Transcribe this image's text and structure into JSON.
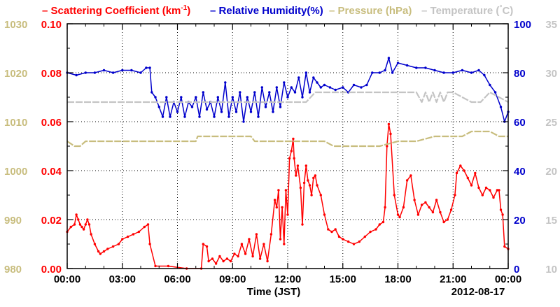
{
  "chart_data": {
    "type": "line",
    "xlabel": "Time (JST)",
    "date_label": "2012-08-17",
    "x_ticks": [
      "00:00",
      "03:00",
      "06:00",
      "09:00",
      "12:00",
      "15:00",
      "18:00",
      "21:00",
      "00:00"
    ],
    "xlim": [
      0,
      24
    ],
    "grid": true,
    "legend_placement": "top",
    "legend": [
      {
        "text": "Scattering Coefficient (km",
        "sup": "-1",
        "tail": ")",
        "color": "#ff0000"
      },
      {
        "text": "Relative Humidity(%)",
        "sup": "",
        "tail": "",
        "color": "#0000cc"
      },
      {
        "text": "Pressure (hPa)",
        "sup": "",
        "tail": "",
        "color": "#c8bd7e"
      },
      {
        "text": "Temperature (",
        "sup": "°",
        "tail": "C)",
        "color": "#c4c4c4"
      }
    ],
    "axes": {
      "pressure": {
        "ylim": [
          980,
          1030
        ],
        "ticks": [
          "980",
          "990",
          "1000",
          "1010",
          "1020",
          "1030"
        ],
        "color": "#c8bd7e",
        "side": "left-outer"
      },
      "scattering": {
        "ylim": [
          0,
          0.1
        ],
        "ticks": [
          "0.00",
          "0.02",
          "0.04",
          "0.06",
          "0.08",
          "0.10"
        ],
        "color": "#ff0000",
        "side": "left-inner"
      },
      "humidity": {
        "ylim": [
          0,
          100
        ],
        "ticks": [
          "0",
          "20",
          "40",
          "60",
          "80",
          "100"
        ],
        "color": "#0000cc",
        "side": "right-inner"
      },
      "temperature": {
        "ylim": [
          10,
          35
        ],
        "ticks": [
          "10",
          "15",
          "20",
          "25",
          "30",
          "35"
        ],
        "color": "#c4c4c4",
        "side": "right-outer"
      }
    },
    "series": [
      {
        "name": "Scattering Coefficient (km-1)",
        "axis": "scattering",
        "color": "#ff0000",
        "x": [
          0,
          0.2,
          0.4,
          0.5,
          0.6,
          0.7,
          0.8,
          0.9,
          1.0,
          1.1,
          1.2,
          1.3,
          1.5,
          1.7,
          1.8,
          2.0,
          2.2,
          2.5,
          2.8,
          3.0,
          3.3,
          3.6,
          3.9,
          4.2,
          4.4,
          4.5,
          4.8,
          5.5,
          6.5,
          7.3,
          7.4,
          7.6,
          7.7,
          7.9,
          8.1,
          8.3,
          8.5,
          8.7,
          8.9,
          9.1,
          9.3,
          9.5,
          9.7,
          9.9,
          10.1,
          10.3,
          10.5,
          10.7,
          10.9,
          11.1,
          11.3,
          11.4,
          11.5,
          11.6,
          11.7,
          11.8,
          11.9,
          12.0,
          12.1,
          12.2,
          12.3,
          12.35,
          12.45,
          12.55,
          12.7,
          12.8,
          12.9,
          13.0,
          13.1,
          13.2,
          13.3,
          13.4,
          13.5,
          13.6,
          13.8,
          14.0,
          14.2,
          14.4,
          14.6,
          14.8,
          15.0,
          15.3,
          15.6,
          15.9,
          16.2,
          16.5,
          16.8,
          17.0,
          17.2,
          17.3,
          17.4,
          17.5,
          17.6,
          17.8,
          18.0,
          18.1,
          18.3,
          18.5,
          18.7,
          18.9,
          19.1,
          19.3,
          19.5,
          19.7,
          19.9,
          20.1,
          20.3,
          20.5,
          20.7,
          20.9,
          21.1,
          21.2,
          21.4,
          21.6,
          21.8,
          22.0,
          22.2,
          22.4,
          22.6,
          22.8,
          23.0,
          23.2,
          23.4,
          23.5,
          23.6,
          23.7,
          23.8,
          24.0
        ],
        "values": [
          0.015,
          0.017,
          0.018,
          0.022,
          0.02,
          0.018,
          0.017,
          0.016,
          0.018,
          0.02,
          0.018,
          0.014,
          0.01,
          0.007,
          0.006,
          0.007,
          0.008,
          0.009,
          0.01,
          0.012,
          0.013,
          0.014,
          0.015,
          0.017,
          0.018,
          0.01,
          0.001,
          0.001,
          0.0,
          0.0,
          0.01,
          0.009,
          0.003,
          0.004,
          0.002,
          0.005,
          0.003,
          0.004,
          0.003,
          0.006,
          0.005,
          0.01,
          0.006,
          0.012,
          0.005,
          0.014,
          0.004,
          0.01,
          0.003,
          0.014,
          0.028,
          0.025,
          0.032,
          0.012,
          0.025,
          0.01,
          0.032,
          0.022,
          0.045,
          0.048,
          0.053,
          0.045,
          0.038,
          0.042,
          0.033,
          0.018,
          0.035,
          0.042,
          0.036,
          0.034,
          0.03,
          0.037,
          0.038,
          0.034,
          0.03,
          0.022,
          0.016,
          0.015,
          0.016,
          0.013,
          0.012,
          0.011,
          0.01,
          0.011,
          0.013,
          0.015,
          0.016,
          0.018,
          0.019,
          0.025,
          0.05,
          0.059,
          0.055,
          0.03,
          0.022,
          0.021,
          0.025,
          0.036,
          0.038,
          0.028,
          0.022,
          0.026,
          0.027,
          0.025,
          0.023,
          0.028,
          0.023,
          0.019,
          0.02,
          0.024,
          0.03,
          0.039,
          0.042,
          0.04,
          0.037,
          0.034,
          0.039,
          0.033,
          0.03,
          0.033,
          0.032,
          0.029,
          0.032,
          0.032,
          0.024,
          0.022,
          0.009,
          0.008
        ],
        "note": ""
      },
      {
        "name": "Relative Humidity(%)",
        "axis": "humidity",
        "color": "#0000cc",
        "x": [
          0,
          0.5,
          1.0,
          1.5,
          2.0,
          2.5,
          3.0,
          3.5,
          4.0,
          4.3,
          4.5,
          4.6,
          4.8,
          5.0,
          5.2,
          5.4,
          5.6,
          5.8,
          6.0,
          6.2,
          6.4,
          6.6,
          6.8,
          7.0,
          7.2,
          7.4,
          7.6,
          7.8,
          8.0,
          8.2,
          8.4,
          8.6,
          8.8,
          9.0,
          9.2,
          9.4,
          9.6,
          9.8,
          10.0,
          10.2,
          10.4,
          10.6,
          10.8,
          11.0,
          11.2,
          11.4,
          11.6,
          11.8,
          12.0,
          12.2,
          12.4,
          12.6,
          12.8,
          13.0,
          13.2,
          13.4,
          13.6,
          13.8,
          14.0,
          14.3,
          14.6,
          15.0,
          15.3,
          15.6,
          16.0,
          16.3,
          16.6,
          17.0,
          17.3,
          17.5,
          17.7,
          18.0,
          18.5,
          19.0,
          19.5,
          20.0,
          20.5,
          21.0,
          21.5,
          22.0,
          22.4,
          22.7,
          23.0,
          23.3,
          23.6,
          23.8,
          24.0
        ],
        "values": [
          80,
          79,
          80,
          80,
          81,
          80,
          81,
          81,
          80,
          82,
          82,
          72,
          70,
          66,
          62,
          70,
          62,
          68,
          64,
          70,
          62,
          68,
          66,
          70,
          62,
          72,
          65,
          68,
          62,
          70,
          64,
          76,
          62,
          70,
          64,
          72,
          60,
          70,
          64,
          72,
          62,
          74,
          66,
          72,
          64,
          74,
          66,
          76,
          70,
          74,
          72,
          78,
          70,
          80,
          72,
          78,
          76,
          74,
          75,
          74,
          73,
          74,
          72,
          75,
          74,
          75,
          80,
          80,
          81,
          86,
          80,
          84,
          83,
          82,
          82,
          81,
          80,
          80,
          81,
          80,
          81,
          79,
          75,
          72,
          66,
          60,
          64
        ],
        "note": ""
      },
      {
        "name": "Pressure (hPa)",
        "axis": "pressure",
        "color": "#c8bd7e",
        "x": [
          0,
          0.4,
          0.7,
          1.0,
          2.0,
          4.0,
          5.0,
          6.0,
          7.0,
          7.1,
          8.0,
          9.0,
          10.0,
          10.2,
          11.0,
          12.0,
          13.0,
          14.0,
          14.5,
          15.0,
          16.0,
          17.0,
          18.0,
          18.3,
          19.0,
          20.0,
          21.0,
          21.5,
          22.0,
          22.5,
          23.0,
          23.5,
          24.0
        ],
        "values": [
          1006,
          1005,
          1005,
          1006,
          1006,
          1006,
          1006,
          1006,
          1006,
          1007,
          1007,
          1007,
          1007,
          1006,
          1006,
          1006,
          1006,
          1006,
          1005,
          1005,
          1005,
          1005,
          1006,
          1006,
          1006,
          1007,
          1007,
          1007,
          1008,
          1008,
          1008,
          1007,
          1007
        ],
        "note": ""
      },
      {
        "name": "Temperature (C)",
        "axis": "temperature",
        "color": "#c4c4c4",
        "x": [
          0,
          1.0,
          2.0,
          3.0,
          4.0,
          5.0,
          6.0,
          7.0,
          8.0,
          9.0,
          10.0,
          11.0,
          12.0,
          13.0,
          13.5,
          14.0,
          15.0,
          16.0,
          17.0,
          18.0,
          19.0,
          19.3,
          19.5,
          19.7,
          19.9,
          20.1,
          20.3,
          20.5,
          20.7,
          21.0,
          22.0,
          22.5,
          23.0,
          24.0
        ],
        "values": [
          27,
          27,
          27,
          27,
          27,
          27,
          27,
          27,
          27,
          27,
          27,
          27,
          27,
          27,
          28,
          28,
          28,
          28,
          28,
          28,
          28,
          27,
          28,
          27,
          28,
          27,
          28,
          27,
          28,
          28,
          27,
          27,
          28,
          27
        ],
        "note": ""
      }
    ]
  }
}
